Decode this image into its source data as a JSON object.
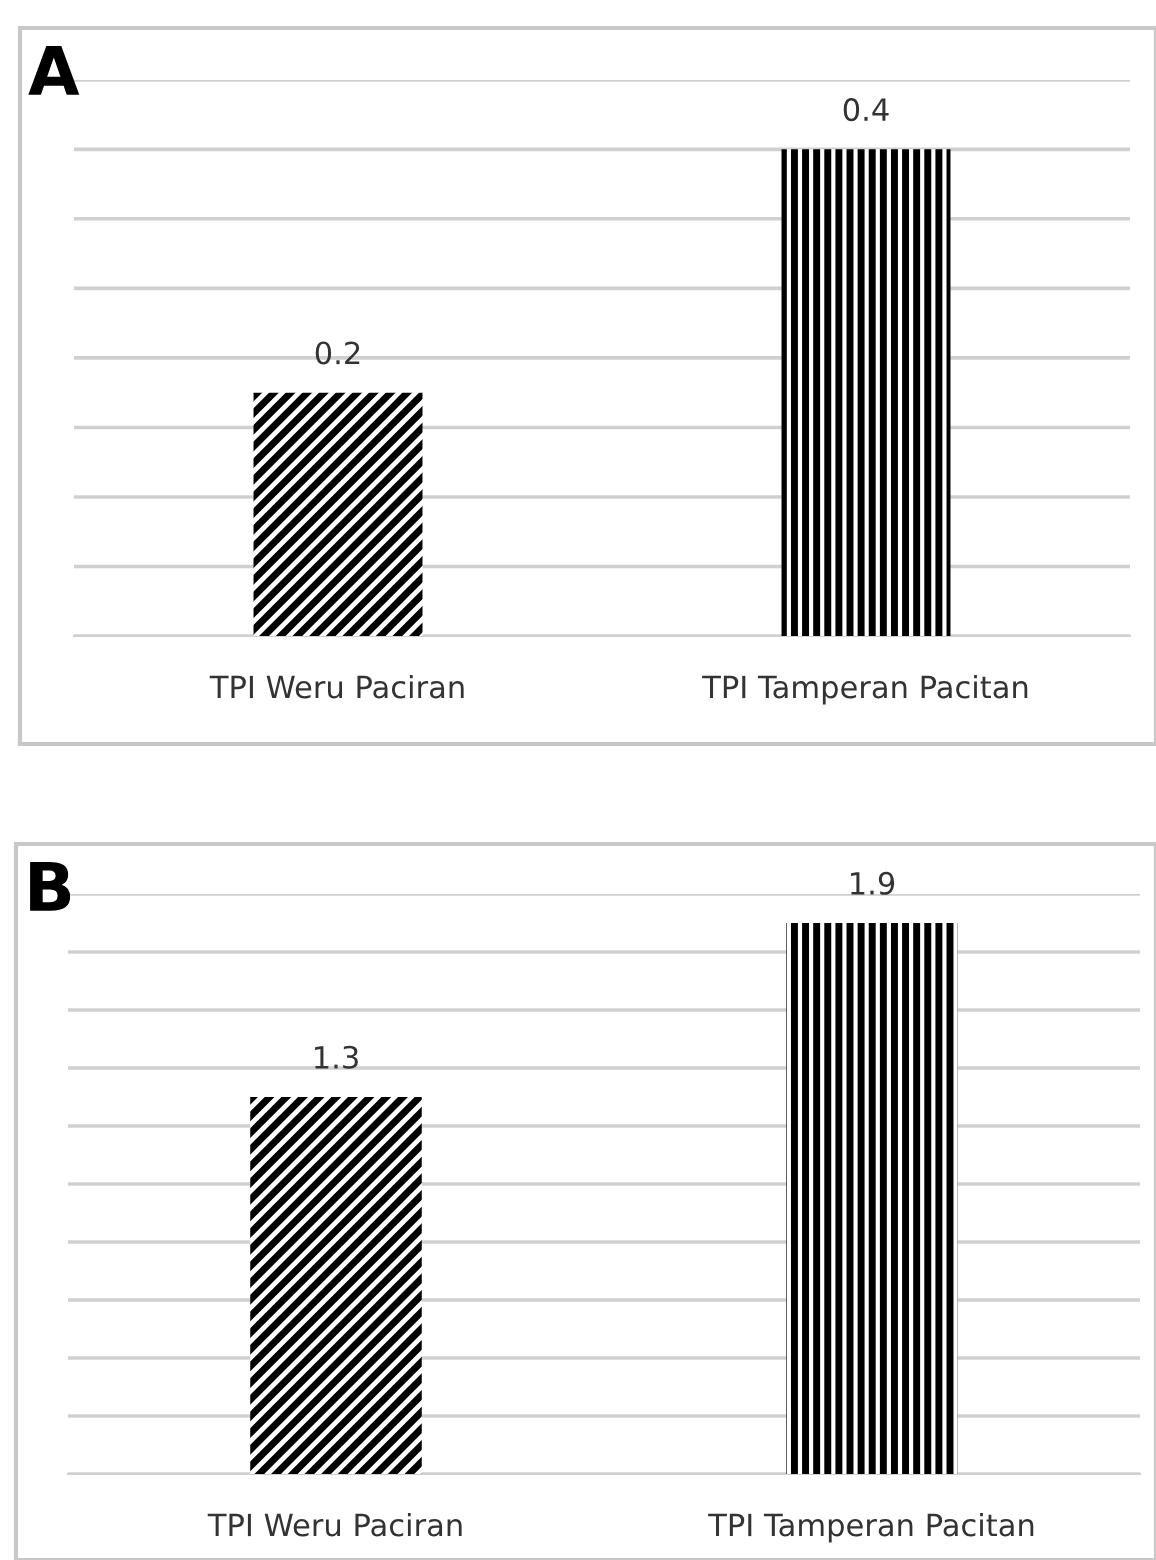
{
  "chart_data": [
    {
      "type": "bar",
      "title": "A",
      "categories": [
        "TPI Weru Paciran",
        "TPI Tamperan Pacitan"
      ],
      "values": [
        0.2,
        0.4
      ],
      "colors": [
        "#000000",
        "#000000"
      ],
      "data_labels": true,
      "grid": "y",
      "tick_labels": "x",
      "ylim": [
        0,
        0.457
      ],
      "yticks": [
        {
          "value": 0,
          "label": null
        },
        {
          "value": 0.0571,
          "label": null
        },
        {
          "value": 0.1143,
          "label": null
        },
        {
          "value": 0.1714,
          "label": null
        },
        {
          "value": 0.2286,
          "label": null
        },
        {
          "value": 0.2857,
          "label": null
        },
        {
          "value": 0.3429,
          "label": null
        },
        {
          "value": 0.4,
          "label": null
        },
        {
          "value": 0.457,
          "label": null
        }
      ]
    },
    {
      "type": "bar",
      "title": "B",
      "categories": [
        "TPI Weru Paciran",
        "TPI Tamperan Pacitan"
      ],
      "values": [
        1.3,
        1.9
      ],
      "colors": [
        "#000000",
        "#000000"
      ],
      "data_labels": true,
      "grid": "y",
      "tick_labels": "x",
      "ylim": [
        0,
        2
      ],
      "yticks": [
        {
          "value": 0,
          "label": null
        },
        {
          "value": 0.2,
          "label": null
        },
        {
          "value": 0.4,
          "label": null
        },
        {
          "value": 0.6,
          "label": null
        },
        {
          "value": 0.8,
          "label": null
        },
        {
          "value": 1.0,
          "label": null
        },
        {
          "value": 1.2,
          "label": null
        },
        {
          "value": 1.4,
          "label": null
        },
        {
          "value": 1.6,
          "label": null
        },
        {
          "value": 1.8,
          "label": null
        },
        {
          "value": 2.0,
          "label": null
        }
      ]
    }
  ]
}
